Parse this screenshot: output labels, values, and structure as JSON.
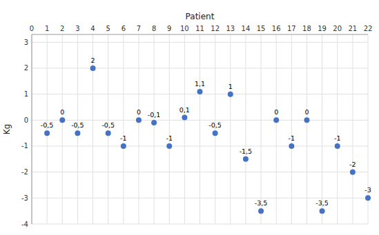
{
  "chart_data": {
    "type": "scatter",
    "x": [
      1,
      2,
      3,
      4,
      5,
      6,
      7,
      8,
      9,
      10,
      11,
      12,
      13,
      14,
      15,
      16,
      17,
      18,
      19,
      20,
      21,
      22
    ],
    "values": [
      -0.5,
      0,
      -0.5,
      2,
      -0.5,
      -1,
      0,
      -0.1,
      -1,
      0.1,
      1.1,
      -0.5,
      1,
      -1.5,
      -3.5,
      0,
      -1,
      0,
      -3.5,
      -1,
      -2,
      -3
    ],
    "value_labels": [
      "-0,5",
      "0",
      "-0,5",
      "2",
      "-0,5",
      "-1",
      "0",
      "-0,1",
      "-1",
      "0,1",
      "1,1",
      "-0,5",
      "1",
      "-1,5",
      "-3,5",
      "0",
      "-1",
      "0",
      "-3,5",
      "-1",
      "-2",
      "-3"
    ],
    "data_labels": true,
    "color": "#4472C4",
    "xlabel": "Patient",
    "ylabel": "Kg",
    "xlim": [
      0,
      22
    ],
    "ylim": [
      -4,
      3.3
    ],
    "xticks": [
      0,
      1,
      2,
      3,
      4,
      5,
      6,
      7,
      8,
      9,
      10,
      11,
      12,
      13,
      14,
      15,
      16,
      17,
      18,
      19,
      20,
      21,
      22
    ],
    "yticks": [
      -4,
      -3,
      -2,
      -1,
      0,
      1,
      2,
      3
    ],
    "grid": true
  }
}
